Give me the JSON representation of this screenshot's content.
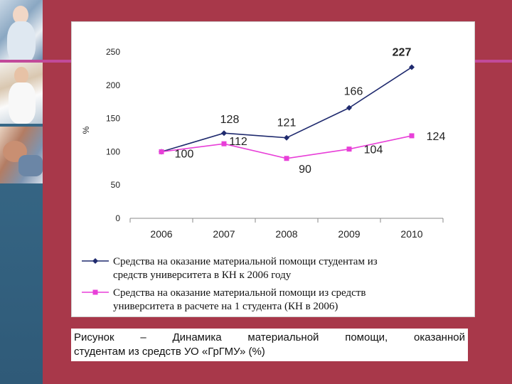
{
  "colors": {
    "background": "#a8384a",
    "series1": "#1f2a6e",
    "series2": "#e83fd8",
    "highlight_label": "#e0262a"
  },
  "chart_data": {
    "type": "line",
    "ylabel": "%",
    "xlabel": "",
    "ylim": [
      0,
      250
    ],
    "yticks": [
      "0",
      "50",
      "100",
      "150",
      "200",
      "250"
    ],
    "categories": [
      "2006",
      "2007",
      "2008",
      "2009",
      "2010"
    ],
    "grid": false,
    "legend_position": "bottom",
    "series": [
      {
        "name": "Средства на оказание материальной помощи студентам из средств университета в КН к 2006 году",
        "legend_lines": [
          "Средства на оказание материальной помощи студентам из",
          "средств университета в КН к 2006 году"
        ],
        "values": [
          100,
          128,
          121,
          166,
          227
        ],
        "labels": [
          "",
          "128",
          "121",
          "166",
          "227"
        ],
        "color": "#1f2a6e",
        "marker": "diamond"
      },
      {
        "name": "Средства на оказание материальной помощи из средств университета в расчете на 1 студента (КН в 2006)",
        "legend_lines": [
          "Средства на оказание материальной помощи из средств",
          "университета в расчете на 1 студента (КН в 2006)"
        ],
        "values": [
          100,
          112,
          90,
          104,
          124
        ],
        "labels": [
          "100",
          "112",
          "90",
          "104",
          "124"
        ],
        "color": "#e83fd8",
        "marker": "square"
      }
    ]
  },
  "caption": {
    "line1_words": [
      "Рисунок",
      "–",
      "Динамика",
      "материальной",
      "помощи,",
      "оказанной"
    ],
    "line2": "студентам из средств УО «ГрГМУ» (%)"
  }
}
